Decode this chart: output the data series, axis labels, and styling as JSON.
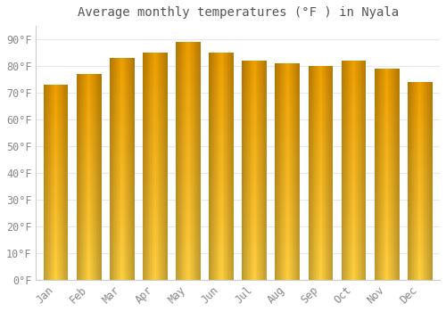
{
  "months": [
    "Jan",
    "Feb",
    "Mar",
    "Apr",
    "May",
    "Jun",
    "Jul",
    "Aug",
    "Sep",
    "Oct",
    "Nov",
    "Dec"
  ],
  "values": [
    73,
    77,
    83,
    85,
    89,
    85,
    82,
    81,
    80,
    82,
    79,
    74
  ],
  "title": "Average monthly temperatures (°F ) in Nyala",
  "ylabel_ticks": [
    "0°F",
    "10°F",
    "20°F",
    "30°F",
    "40°F",
    "50°F",
    "60°F",
    "70°F",
    "80°F",
    "90°F"
  ],
  "ytick_vals": [
    0,
    10,
    20,
    30,
    40,
    50,
    60,
    70,
    80,
    90
  ],
  "ylim": [
    0,
    95
  ],
  "bar_color_dark": "#F0A000",
  "bar_color_light": "#FFD040",
  "background_color": "#ffffff",
  "grid_color": "#e8e8e8",
  "title_fontsize": 10,
  "tick_fontsize": 8.5
}
